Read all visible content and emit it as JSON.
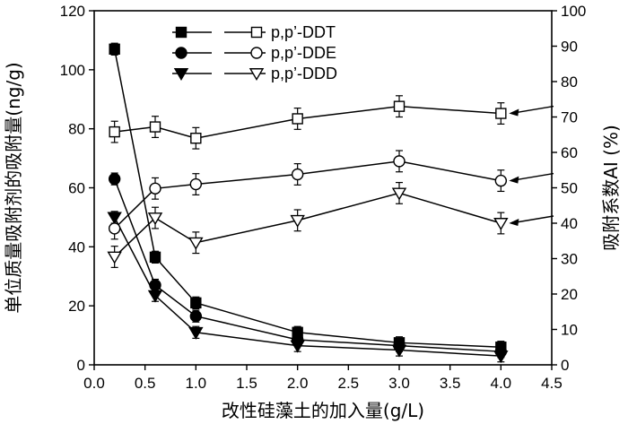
{
  "chart_data": {
    "type": "line",
    "xlabel": "改性硅藻土的加入量(g/L)",
    "ylabel_left": "单位质量吸附剂的吸附量(ng/g)",
    "ylabel_right": "吸附系数AI (%)",
    "xlim": [
      0,
      4.5
    ],
    "ylim_left": [
      0,
      120
    ],
    "ylim_right": [
      0,
      100
    ],
    "x_ticks": [
      "0.0",
      "0.5",
      "1.0",
      "1.5",
      "2.0",
      "2.5",
      "3.0",
      "3.5",
      "4.0",
      "4.5"
    ],
    "y_left_ticks": [
      "0",
      "20",
      "40",
      "60",
      "80",
      "100",
      "120"
    ],
    "y_right_ticks": [
      "0",
      "10",
      "20",
      "30",
      "40",
      "50",
      "60",
      "70",
      "80",
      "90",
      "100"
    ],
    "grid": false,
    "legend_position": "top-center",
    "x": [
      0.2,
      0.6,
      1.0,
      2.0,
      3.0,
      4.0
    ],
    "series": [
      {
        "name": "p,p’-DDT",
        "axis": "left",
        "marker": "square-filled",
        "values": [
          107,
          36.5,
          21,
          11,
          7.5,
          6
        ]
      },
      {
        "name": "p,p’-DDE",
        "axis": "left",
        "marker": "circle-filled",
        "values": [
          63,
          27,
          16.5,
          8.5,
          6.5,
          4.5
        ]
      },
      {
        "name": "p,p’-DDD",
        "axis": "left",
        "marker": "triangle-filled",
        "values": [
          50,
          23.5,
          11,
          6.5,
          5,
          3
        ]
      },
      {
        "name": "p,p’-DDT",
        "axis": "right",
        "marker": "square-open",
        "values": [
          65.8,
          67.2,
          64,
          69.5,
          73,
          71
        ]
      },
      {
        "name": "p,p’-DDE",
        "axis": "right",
        "marker": "circle-open",
        "values": [
          38.5,
          49.8,
          51,
          53.8,
          57.5,
          52
        ]
      },
      {
        "name": "p,p’-DDD",
        "axis": "right",
        "marker": "triangle-open",
        "values": [
          30.5,
          41.5,
          34.5,
          40.8,
          48.5,
          40
        ]
      }
    ],
    "error_bars_left": [
      2,
      2,
      2,
      2,
      2,
      2
    ],
    "error_bars_right": [
      3,
      3,
      3,
      3,
      3,
      3
    ]
  }
}
